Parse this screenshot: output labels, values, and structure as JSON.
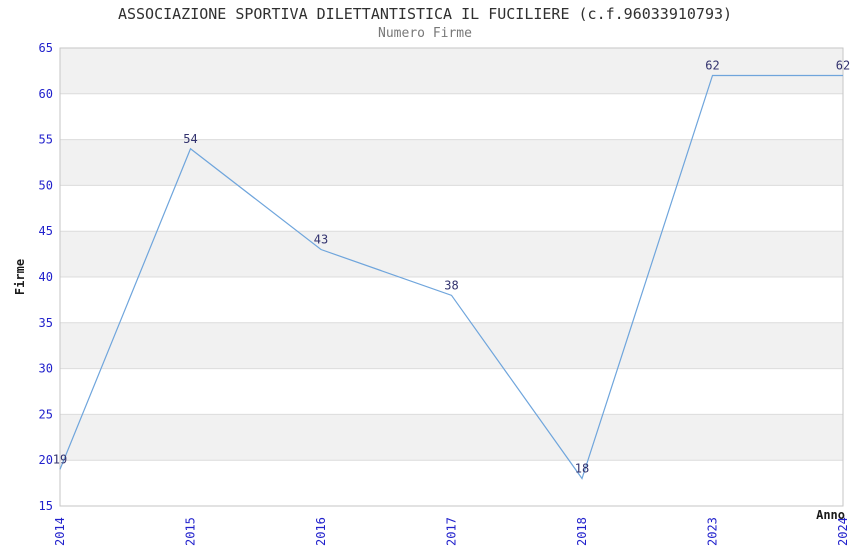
{
  "chart_data": {
    "type": "line",
    "title": "ASSOCIAZIONE SPORTIVA DILETTANTISTICA IL FUCILIERE (c.f.96033910793)",
    "subtitle": "Numero Firme",
    "xlabel": "Anno",
    "ylabel": "Firme",
    "categories": [
      "2014",
      "2015",
      "2016",
      "2017",
      "2018",
      "2023",
      "2024"
    ],
    "values": [
      19,
      54,
      43,
      38,
      18,
      62,
      62
    ],
    "ylim": [
      15,
      65
    ],
    "ytick_step": 5,
    "grid": true,
    "legend": "none",
    "markers": "none",
    "colors": {
      "line": "#6fa5dc",
      "data_label": "#32326e",
      "tick_label": "#2222cc",
      "axis_title": "#1a1a1a",
      "title": "#303030",
      "subtitle": "#787878",
      "band": "#f1f1f1",
      "gridline": "#dcdcdc",
      "border": "#c6c6c6",
      "background": "#ffffff"
    }
  }
}
